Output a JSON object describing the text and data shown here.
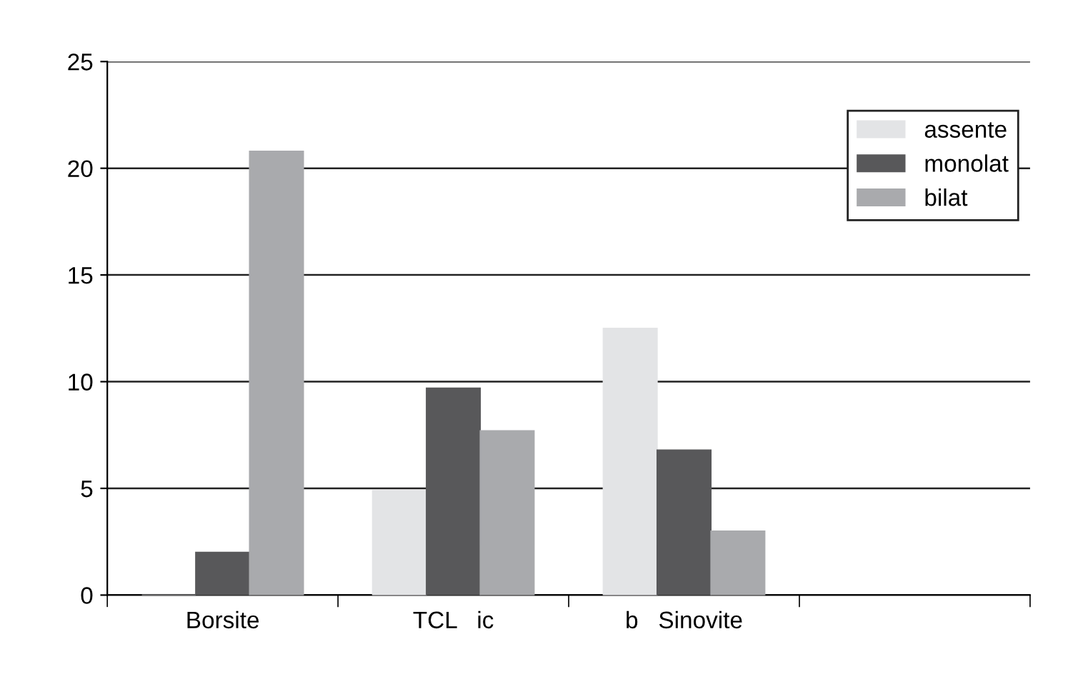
{
  "chart_data": {
    "type": "bar",
    "categories": [
      "Borsite",
      "TCL   ic",
      "b   Sinovite",
      null
    ],
    "series": [
      {
        "name": "assente",
        "color": "#e3e4e6",
        "values": [
          0,
          4.9,
          12.5,
          null
        ]
      },
      {
        "name": "monolat",
        "color": "#58585a",
        "values": [
          2,
          9.7,
          6.8,
          null
        ]
      },
      {
        "name": "bilat",
        "color": "#a9aaad",
        "values": [
          20.8,
          7.7,
          3,
          null
        ]
      }
    ],
    "ylim": [
      0,
      25
    ],
    "yticks": [
      0,
      5,
      10,
      15,
      20,
      25
    ],
    "grid": "y",
    "legend": "top right"
  }
}
